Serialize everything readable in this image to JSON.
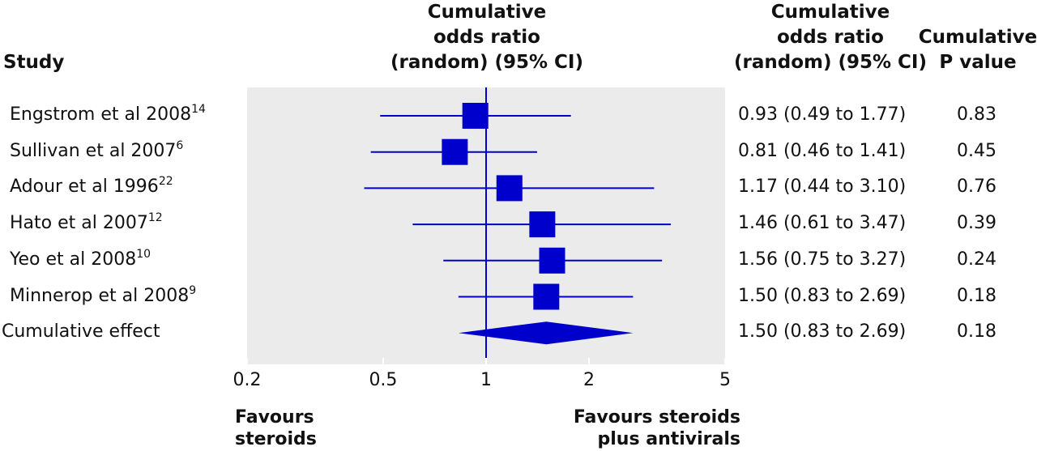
{
  "headers": {
    "study": "Study",
    "plot": [
      "Cumulative",
      "odds ratio",
      "(random) (95% CI)"
    ],
    "or_col": [
      "Cumulative",
      "odds ratio",
      "(random) (95% CI)"
    ],
    "p_col": [
      "Cumulative",
      "P value"
    ]
  },
  "chart_data": {
    "type": "forest",
    "scale": "log",
    "xlim": [
      0.2,
      5
    ],
    "x_ticks": [
      "0.2",
      "0.5",
      "1",
      "2",
      "5"
    ],
    "x_tick_values": [
      0.2,
      0.5,
      1,
      2,
      5
    ],
    "reference_line": 1,
    "background": "#ebebeb",
    "marker_color": "#0000cc",
    "rows": [
      {
        "study": "Engstrom et al 2008",
        "ref": "14",
        "or": 0.93,
        "lo": 0.49,
        "hi": 1.77,
        "or_text": "0.93 (0.49 to 1.77)",
        "p": "0.83"
      },
      {
        "study": "Sullivan et al 2007",
        "ref": "6",
        "or": 0.81,
        "lo": 0.46,
        "hi": 1.41,
        "or_text": "0.81 (0.46 to 1.41)",
        "p": "0.45"
      },
      {
        "study": "Adour et al 1996",
        "ref": "22",
        "or": 1.17,
        "lo": 0.44,
        "hi": 3.1,
        "or_text": "1.17 (0.44 to 3.10)",
        "p": "0.76"
      },
      {
        "study": "Hato et al 2007",
        "ref": "12",
        "or": 1.46,
        "lo": 0.61,
        "hi": 3.47,
        "or_text": "1.46 (0.61 to 3.47)",
        "p": "0.39"
      },
      {
        "study": "Yeo et al 2008",
        "ref": "10",
        "or": 1.56,
        "lo": 0.75,
        "hi": 3.27,
        "or_text": "1.56 (0.75 to 3.27)",
        "p": "0.24"
      },
      {
        "study": "Minnerop et al 2008",
        "ref": "9",
        "or": 1.5,
        "lo": 0.83,
        "hi": 2.69,
        "or_text": "1.50 (0.83 to 2.69)",
        "p": "0.18"
      }
    ],
    "summary": {
      "label": "Cumulative effect",
      "or": 1.5,
      "lo": 0.83,
      "hi": 2.69,
      "or_text": "1.50 (0.83 to 2.69)",
      "p": "0.18"
    },
    "favours_left": [
      "Favours",
      "steroids"
    ],
    "favours_right": [
      "Favours steroids",
      "plus antivirals"
    ]
  }
}
